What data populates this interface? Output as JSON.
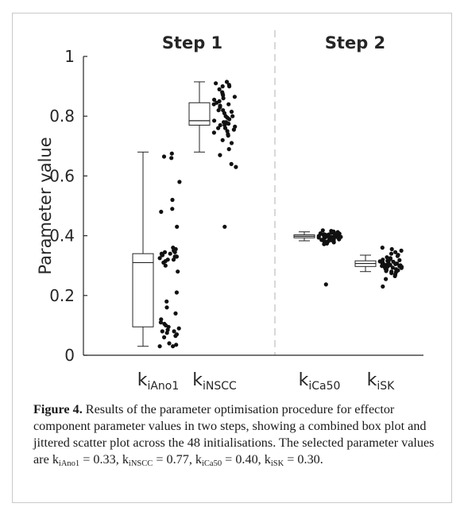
{
  "chart_data": {
    "type": "box",
    "ylabel": "Parameter value",
    "ylim": [
      0,
      1
    ],
    "yticks": [
      0,
      0.2,
      0.4,
      0.6,
      0.8,
      1
    ],
    "ytick_labels": [
      "0",
      "0.2",
      "0.4",
      "0.6",
      "0.8",
      "1"
    ],
    "groups": [
      {
        "label": "Step 1",
        "categories": [
          "kiAno1",
          "kiNSCC"
        ]
      },
      {
        "label": "Step 2",
        "categories": [
          "kiCa50",
          "kiSK"
        ]
      }
    ],
    "series": [
      {
        "name": "kiAno1",
        "k": "k",
        "sub": "iAno1",
        "box": {
          "whisker_low": 0.03,
          "q1": 0.095,
          "median": 0.31,
          "q3": 0.34,
          "whisker_high": 0.68
        },
        "points": [
          0.675,
          0.665,
          0.66,
          0.58,
          0.52,
          0.49,
          0.48,
          0.43,
          0.36,
          0.355,
          0.35,
          0.345,
          0.345,
          0.34,
          0.34,
          0.335,
          0.335,
          0.33,
          0.33,
          0.33,
          0.325,
          0.32,
          0.32,
          0.315,
          0.31,
          0.3,
          0.28,
          0.21,
          0.18,
          0.16,
          0.14,
          0.12,
          0.11,
          0.105,
          0.1,
          0.095,
          0.09,
          0.085,
          0.08,
          0.08,
          0.075,
          0.07,
          0.065,
          0.06,
          0.04,
          0.035,
          0.03,
          0.03
        ]
      },
      {
        "name": "kiNSCC",
        "k": "k",
        "sub": "iNSCC",
        "box": {
          "whisker_low": 0.68,
          "q1": 0.77,
          "median": 0.785,
          "q3": 0.845,
          "whisker_high": 0.915
        },
        "points": [
          0.915,
          0.91,
          0.905,
          0.9,
          0.9,
          0.89,
          0.88,
          0.875,
          0.87,
          0.865,
          0.86,
          0.855,
          0.85,
          0.845,
          0.84,
          0.84,
          0.835,
          0.83,
          0.82,
          0.82,
          0.815,
          0.81,
          0.8,
          0.8,
          0.795,
          0.79,
          0.785,
          0.78,
          0.78,
          0.775,
          0.775,
          0.77,
          0.77,
          0.765,
          0.76,
          0.76,
          0.755,
          0.75,
          0.745,
          0.74,
          0.735,
          0.72,
          0.71,
          0.69,
          0.67,
          0.64,
          0.63,
          0.43
        ]
      },
      {
        "name": "kiCa50",
        "k": "k",
        "sub": "iCa50",
        "box": {
          "whisker_low": 0.383,
          "q1": 0.393,
          "median": 0.398,
          "q3": 0.403,
          "whisker_high": 0.413
        },
        "points": [
          0.418,
          0.416,
          0.414,
          0.412,
          0.41,
          0.409,
          0.408,
          0.407,
          0.406,
          0.405,
          0.404,
          0.403,
          0.403,
          0.402,
          0.401,
          0.4,
          0.4,
          0.399,
          0.399,
          0.398,
          0.398,
          0.397,
          0.397,
          0.396,
          0.396,
          0.395,
          0.395,
          0.394,
          0.393,
          0.393,
          0.392,
          0.391,
          0.39,
          0.39,
          0.389,
          0.388,
          0.387,
          0.386,
          0.385,
          0.384,
          0.383,
          0.382,
          0.38,
          0.378,
          0.376,
          0.374,
          0.372,
          0.237
        ]
      },
      {
        "name": "kiSK",
        "k": "k",
        "sub": "iSK",
        "box": {
          "whisker_low": 0.28,
          "q1": 0.297,
          "median": 0.307,
          "q3": 0.316,
          "whisker_high": 0.335
        },
        "points": [
          0.36,
          0.355,
          0.35,
          0.345,
          0.34,
          0.336,
          0.332,
          0.328,
          0.325,
          0.322,
          0.32,
          0.318,
          0.316,
          0.314,
          0.313,
          0.312,
          0.311,
          0.31,
          0.309,
          0.308,
          0.307,
          0.306,
          0.305,
          0.304,
          0.303,
          0.302,
          0.301,
          0.3,
          0.299,
          0.298,
          0.297,
          0.296,
          0.295,
          0.294,
          0.293,
          0.292,
          0.29,
          0.288,
          0.286,
          0.284,
          0.282,
          0.28,
          0.278,
          0.275,
          0.27,
          0.265,
          0.255,
          0.23
        ]
      }
    ]
  },
  "caption": {
    "label": "Figure 4.",
    "text": "Results of the parameter optimisation procedure for effector component parameter values in two steps, showing a combined box plot and jittered scatter plot across the 48 initialisations. The selected parameter values are",
    "values": [
      {
        "k": "k",
        "sub": "iAno1",
        "eq": " = 0.33,"
      },
      {
        "k": "k",
        "sub": "iNSCC",
        "eq": " = 0.77,"
      },
      {
        "k": "k",
        "sub": "iCa50",
        "eq": " = 0.40,"
      },
      {
        "k": "k",
        "sub": "iSK",
        "eq": " = 0.30."
      }
    ]
  }
}
